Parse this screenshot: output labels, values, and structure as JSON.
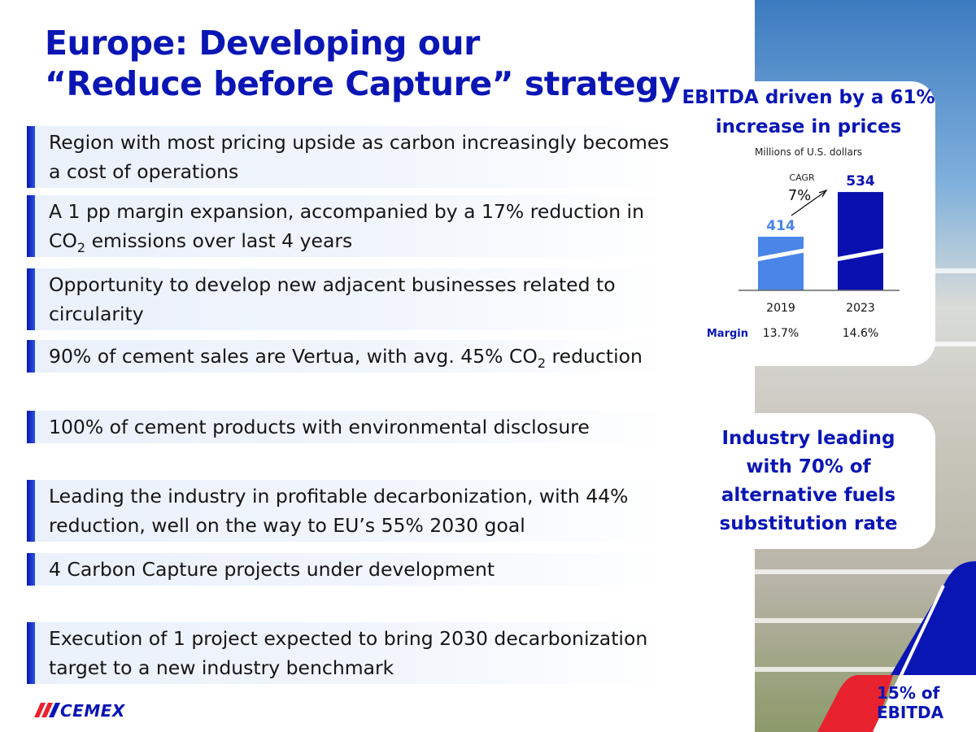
{
  "title": [
    "Europe: Developing our",
    "“Reduce before Capture” strategy"
  ],
  "bullets": [
    {
      "pre": "Region with most pricing upside as carbon increasingly becomes a cost of operations",
      "sub": "",
      "post": ""
    },
    {
      "pre": "A 1 pp margin expansion, accompanied by a 17% reduction in CO",
      "sub": "2",
      "post": " emissions over last 4 years"
    },
    {
      "pre": "Opportunity to develop new adjacent businesses related to circularity",
      "sub": "",
      "post": ""
    },
    {
      "pre": "90% of cement sales are Vertua, with avg. 45% CO",
      "sub": "2",
      "post": " reduction"
    },
    {
      "pre": "100% of cement products with environmental disclosure",
      "sub": "",
      "post": ""
    },
    {
      "pre": "Leading the industry in profitable decarbonization, with 44% reduction, well on the way to EU’s 55% 2030 goal",
      "sub": "",
      "post": ""
    },
    {
      "pre": "4 Carbon Capture projects under development",
      "sub": "",
      "post": ""
    },
    {
      "pre": "Execution of 1 project expected to bring 2030 decarbonization target to a new industry benchmark",
      "sub": "",
      "post": ""
    }
  ],
  "card1": {
    "heading": "EBITDA driven by a 61% increase in prices"
  },
  "chart_data": {
    "type": "bar",
    "title": "EBITDA driven by a 61% increase in prices",
    "subtitle": "Millions of U.S. dollars",
    "categories": [
      "2019",
      "2023"
    ],
    "values": [
      414,
      534
    ],
    "colors": [
      "#4a86e8",
      "#0a10b0"
    ],
    "ylim": [
      270,
      560
    ],
    "axis_break": true,
    "annotation": {
      "label": "CAGR",
      "value": "7%"
    },
    "margin_label": "Margin",
    "margins": [
      "13.7%",
      "14.6%"
    ]
  },
  "card2": {
    "text": "Industry leading with 70% of alternative fuels substitution rate"
  },
  "corner": {
    "line1": "15% of",
    "line2": "EBITDA"
  },
  "logo": {
    "text": "CEMEX"
  },
  "colors": {
    "brand_blue": "#0a16b4",
    "brand_red": "#e8222e"
  }
}
